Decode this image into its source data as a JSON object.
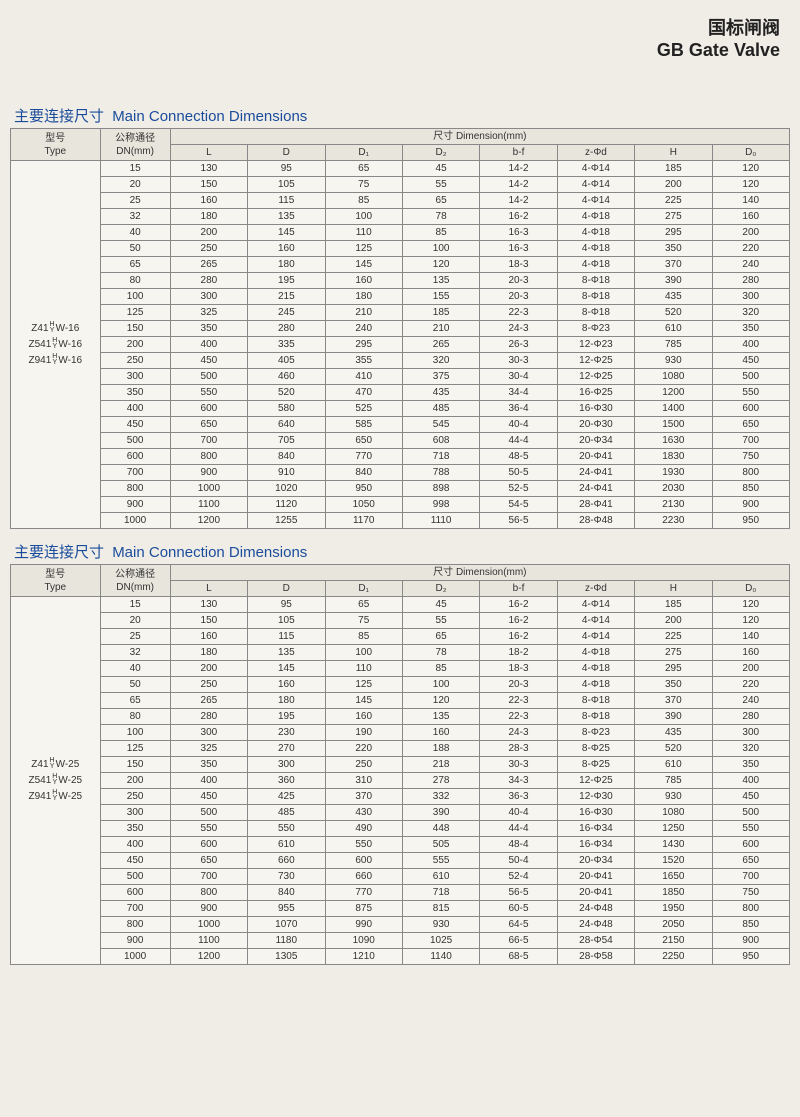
{
  "header": {
    "cn": "国标闸阀",
    "en": "GB Gate Valve"
  },
  "sectionTitle": {
    "cn": "主要连接尺寸",
    "en": "Main Connection Dimensions"
  },
  "headers": {
    "type_cn": "型号",
    "type_en": "Type",
    "dn_cn": "公称通径",
    "dn_en": "DN(mm)",
    "dim": "尺寸 Dimension(mm)",
    "L": "L",
    "D": "D",
    "D1": "D₁",
    "D2": "D₂",
    "bf": "b-f",
    "zd": "z-Φd",
    "H": "H",
    "D0": "D₀"
  },
  "types1": [
    "Z41",
    "Z541",
    "Z941"
  ],
  "typesSuffix1": "-16",
  "types2": [
    "Z41",
    "Z541",
    "Z941"
  ],
  "typesSuffix2": "-25",
  "hy": {
    "h": "H",
    "w": "W",
    "y": "Y"
  },
  "t1": [
    [
      "15",
      "130",
      "95",
      "65",
      "45",
      "14-2",
      "4-Φ14",
      "185",
      "120"
    ],
    [
      "20",
      "150",
      "105",
      "75",
      "55",
      "14-2",
      "4-Φ14",
      "200",
      "120"
    ],
    [
      "25",
      "160",
      "115",
      "85",
      "65",
      "14-2",
      "4-Φ14",
      "225",
      "140"
    ],
    [
      "32",
      "180",
      "135",
      "100",
      "78",
      "16-2",
      "4-Φ18",
      "275",
      "160"
    ],
    [
      "40",
      "200",
      "145",
      "110",
      "85",
      "16-3",
      "4-Φ18",
      "295",
      "200"
    ],
    [
      "50",
      "250",
      "160",
      "125",
      "100",
      "16-3",
      "4-Φ18",
      "350",
      "220"
    ],
    [
      "65",
      "265",
      "180",
      "145",
      "120",
      "18-3",
      "4-Φ18",
      "370",
      "240"
    ],
    [
      "80",
      "280",
      "195",
      "160",
      "135",
      "20-3",
      "8-Φ18",
      "390",
      "280"
    ],
    [
      "100",
      "300",
      "215",
      "180",
      "155",
      "20-3",
      "8-Φ18",
      "435",
      "300"
    ],
    [
      "125",
      "325",
      "245",
      "210",
      "185",
      "22-3",
      "8-Φ18",
      "520",
      "320"
    ],
    [
      "150",
      "350",
      "280",
      "240",
      "210",
      "24-3",
      "8-Φ23",
      "610",
      "350"
    ],
    [
      "200",
      "400",
      "335",
      "295",
      "265",
      "26-3",
      "12-Φ23",
      "785",
      "400"
    ],
    [
      "250",
      "450",
      "405",
      "355",
      "320",
      "30-3",
      "12-Φ25",
      "930",
      "450"
    ],
    [
      "300",
      "500",
      "460",
      "410",
      "375",
      "30-4",
      "12-Φ25",
      "1080",
      "500"
    ],
    [
      "350",
      "550",
      "520",
      "470",
      "435",
      "34-4",
      "16-Φ25",
      "1200",
      "550"
    ],
    [
      "400",
      "600",
      "580",
      "525",
      "485",
      "36-4",
      "16-Φ30",
      "1400",
      "600"
    ],
    [
      "450",
      "650",
      "640",
      "585",
      "545",
      "40-4",
      "20-Φ30",
      "1500",
      "650"
    ],
    [
      "500",
      "700",
      "705",
      "650",
      "608",
      "44-4",
      "20-Φ34",
      "1630",
      "700"
    ],
    [
      "600",
      "800",
      "840",
      "770",
      "718",
      "48-5",
      "20-Φ41",
      "1830",
      "750"
    ],
    [
      "700",
      "900",
      "910",
      "840",
      "788",
      "50-5",
      "24-Φ41",
      "1930",
      "800"
    ],
    [
      "800",
      "1000",
      "1020",
      "950",
      "898",
      "52-5",
      "24-Φ41",
      "2030",
      "850"
    ],
    [
      "900",
      "1100",
      "1120",
      "1050",
      "998",
      "54-5",
      "28-Φ41",
      "2130",
      "900"
    ],
    [
      "1000",
      "1200",
      "1255",
      "1170",
      "1110",
      "56-5",
      "28-Φ48",
      "2230",
      "950"
    ]
  ],
  "t2": [
    [
      "15",
      "130",
      "95",
      "65",
      "45",
      "16-2",
      "4-Φ14",
      "185",
      "120"
    ],
    [
      "20",
      "150",
      "105",
      "75",
      "55",
      "16-2",
      "4-Φ14",
      "200",
      "120"
    ],
    [
      "25",
      "160",
      "115",
      "85",
      "65",
      "16-2",
      "4-Φ14",
      "225",
      "140"
    ],
    [
      "32",
      "180",
      "135",
      "100",
      "78",
      "18-2",
      "4-Φ18",
      "275",
      "160"
    ],
    [
      "40",
      "200",
      "145",
      "110",
      "85",
      "18-3",
      "4-Φ18",
      "295",
      "200"
    ],
    [
      "50",
      "250",
      "160",
      "125",
      "100",
      "20-3",
      "4-Φ18",
      "350",
      "220"
    ],
    [
      "65",
      "265",
      "180",
      "145",
      "120",
      "22-3",
      "8-Φ18",
      "370",
      "240"
    ],
    [
      "80",
      "280",
      "195",
      "160",
      "135",
      "22-3",
      "8-Φ18",
      "390",
      "280"
    ],
    [
      "100",
      "300",
      "230",
      "190",
      "160",
      "24-3",
      "8-Φ23",
      "435",
      "300"
    ],
    [
      "125",
      "325",
      "270",
      "220",
      "188",
      "28-3",
      "8-Φ25",
      "520",
      "320"
    ],
    [
      "150",
      "350",
      "300",
      "250",
      "218",
      "30-3",
      "8-Φ25",
      "610",
      "350"
    ],
    [
      "200",
      "400",
      "360",
      "310",
      "278",
      "34-3",
      "12-Φ25",
      "785",
      "400"
    ],
    [
      "250",
      "450",
      "425",
      "370",
      "332",
      "36-3",
      "12-Φ30",
      "930",
      "450"
    ],
    [
      "300",
      "500",
      "485",
      "430",
      "390",
      "40-4",
      "16-Φ30",
      "1080",
      "500"
    ],
    [
      "350",
      "550",
      "550",
      "490",
      "448",
      "44-4",
      "16-Φ34",
      "1250",
      "550"
    ],
    [
      "400",
      "600",
      "610",
      "550",
      "505",
      "48-4",
      "16-Φ34",
      "1430",
      "600"
    ],
    [
      "450",
      "650",
      "660",
      "600",
      "555",
      "50-4",
      "20-Φ34",
      "1520",
      "650"
    ],
    [
      "500",
      "700",
      "730",
      "660",
      "610",
      "52-4",
      "20-Φ41",
      "1650",
      "700"
    ],
    [
      "600",
      "800",
      "840",
      "770",
      "718",
      "56-5",
      "20-Φ41",
      "1850",
      "750"
    ],
    [
      "700",
      "900",
      "955",
      "875",
      "815",
      "60-5",
      "24-Φ48",
      "1950",
      "800"
    ],
    [
      "800",
      "1000",
      "1070",
      "990",
      "930",
      "64-5",
      "24-Φ48",
      "2050",
      "850"
    ],
    [
      "900",
      "1100",
      "1180",
      "1090",
      "1025",
      "66-5",
      "28-Φ54",
      "2150",
      "900"
    ],
    [
      "1000",
      "1200",
      "1305",
      "1210",
      "1140",
      "68-5",
      "28-Φ58",
      "2250",
      "950"
    ]
  ]
}
